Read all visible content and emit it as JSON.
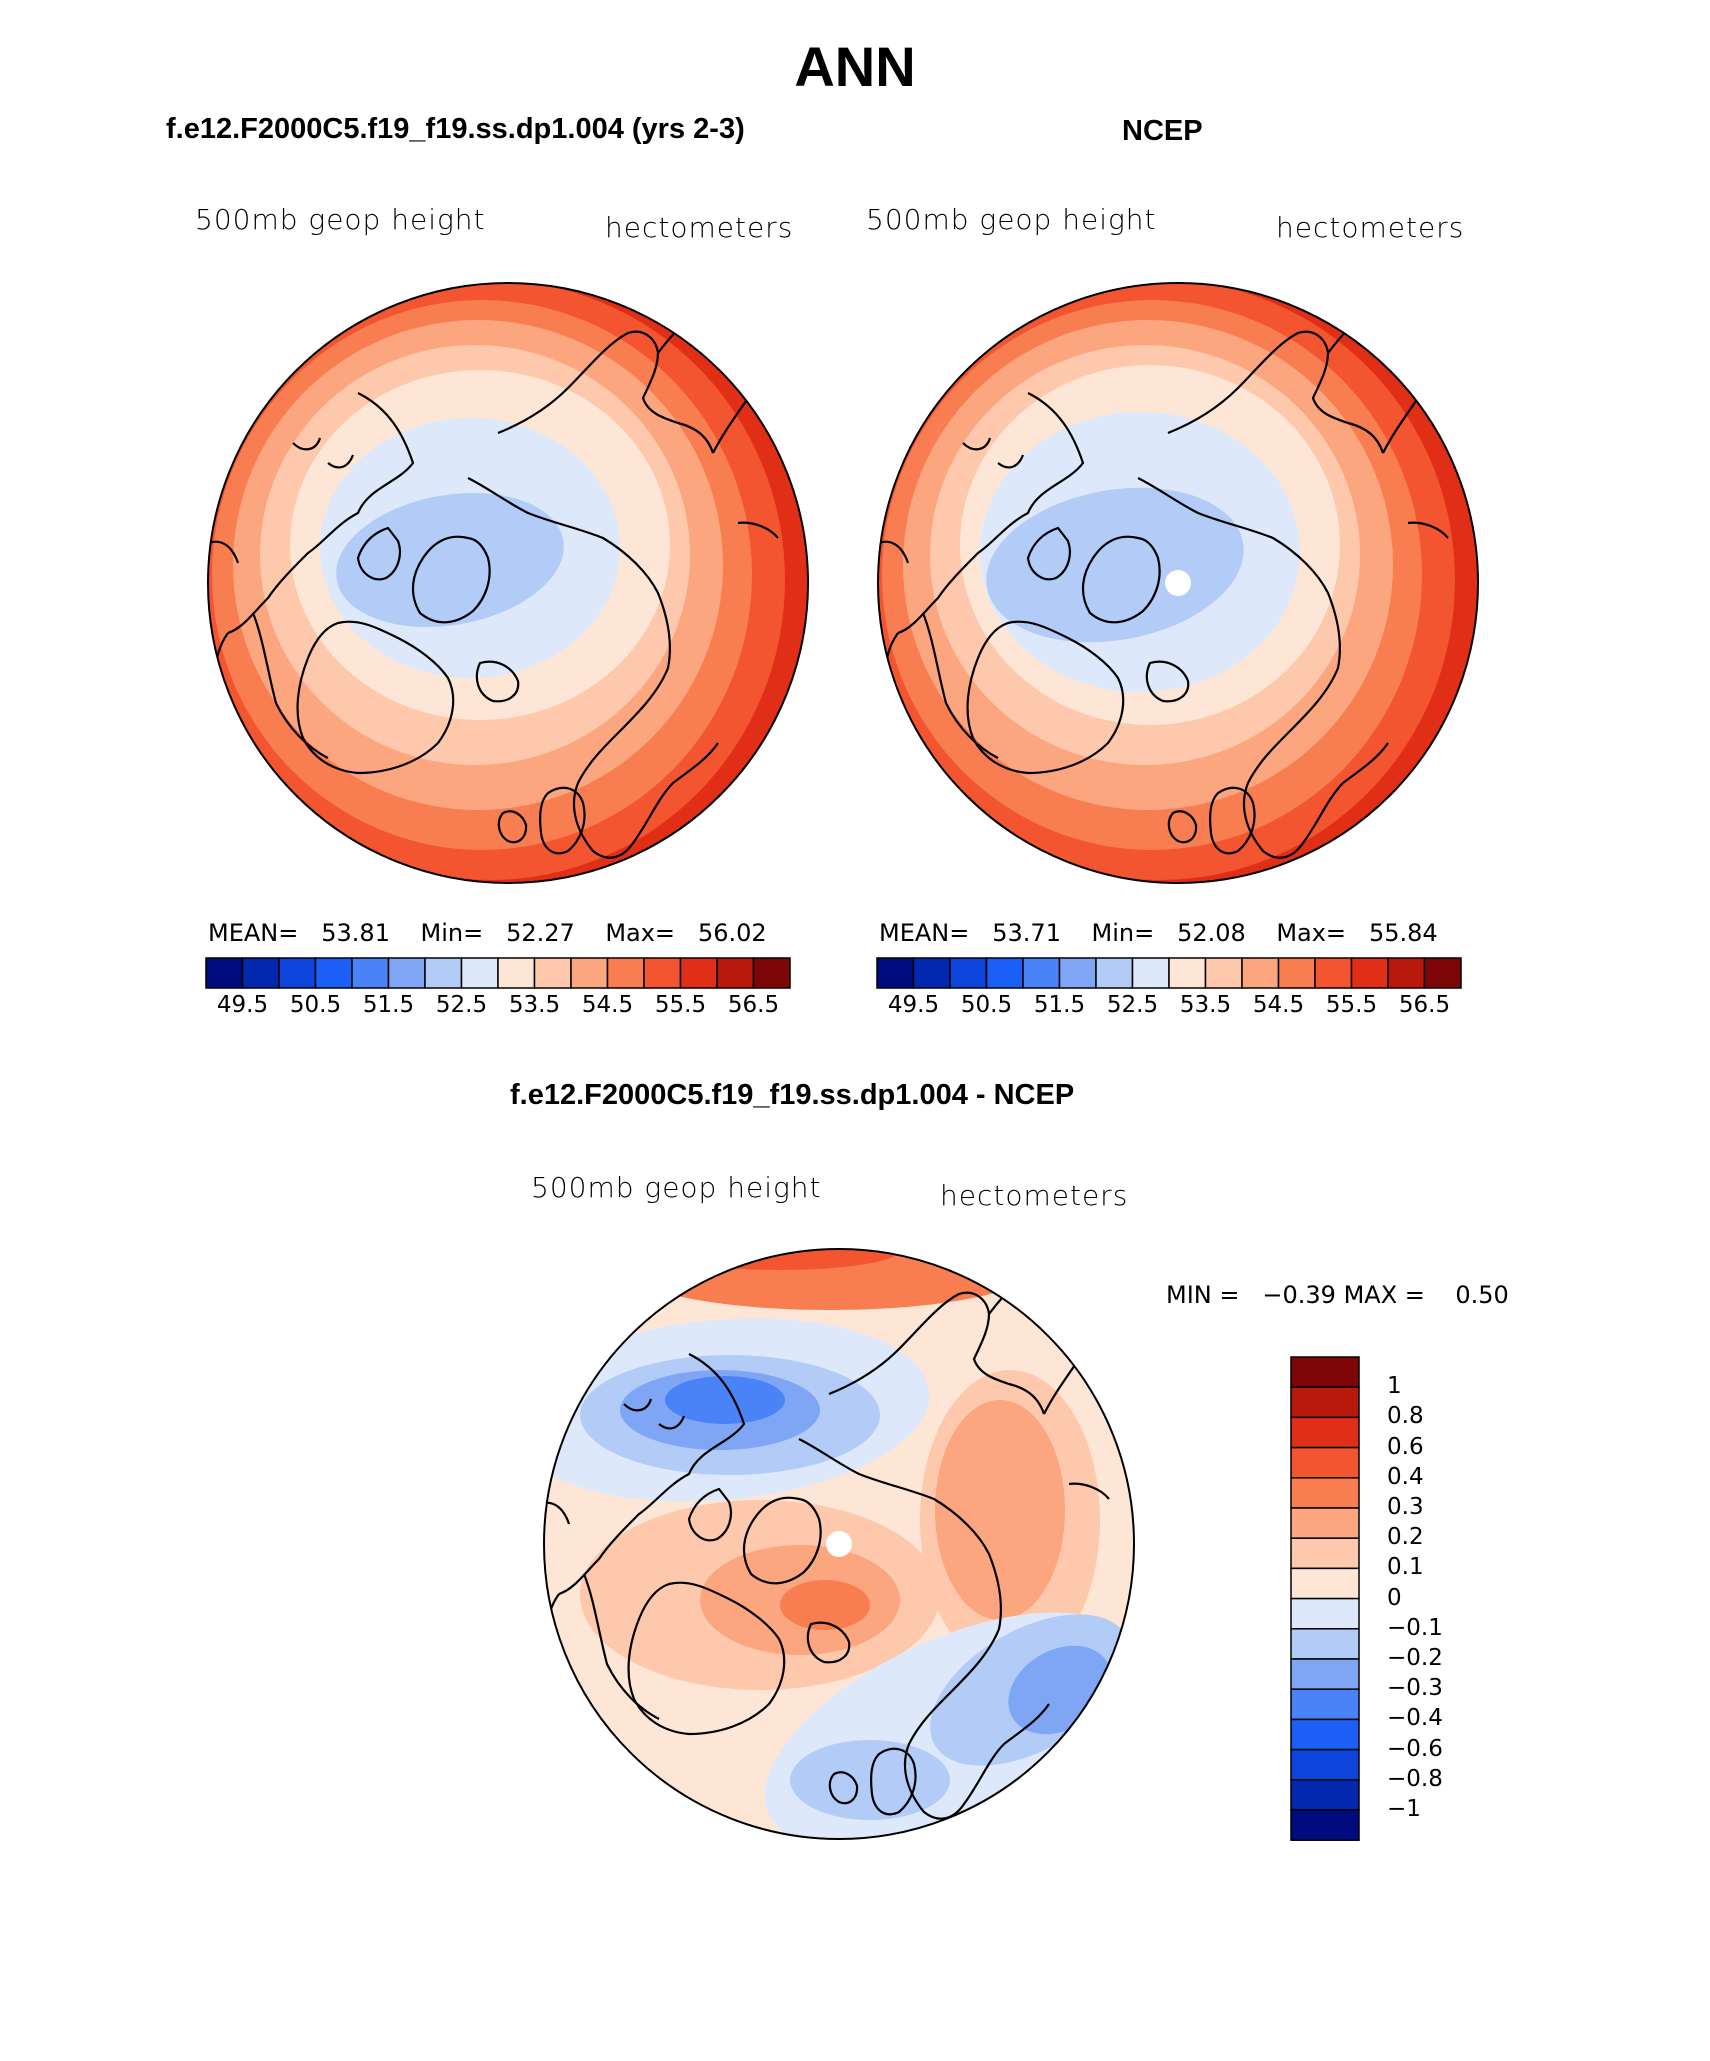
{
  "figure": {
    "season": "ANN",
    "field_label": "500mb geop height",
    "units_label": "hectometers"
  },
  "panels": [
    {
      "id": "model",
      "case_title": "f.e12.F2000C5.f19_f19.ss.dp1.004 (yrs 2-3)",
      "stats": {
        "mean_label": "MEAN=",
        "mean": "53.81",
        "min_label": "Min=",
        "min": "52.27",
        "max_label": "Max=",
        "max": "56.02"
      }
    },
    {
      "id": "obs",
      "case_title": "NCEP",
      "stats": {
        "mean_label": "MEAN=",
        "mean": "53.71",
        "min_label": "Min=",
        "min": "52.08",
        "max_label": "Max=",
        "max": "55.84"
      }
    },
    {
      "id": "diff",
      "case_title": "f.e12.F2000C5.f19_f19.ss.dp1.004 - NCEP",
      "stats": {
        "min_label": "MIN =",
        "min": "−0.39",
        "max_label": "MAX =",
        "max": "0.50"
      }
    }
  ],
  "colorbar_abs": {
    "tick_labels": [
      "49.5",
      "50.5",
      "51.5",
      "52.5",
      "53.5",
      "54.5",
      "55.5",
      "56.5"
    ],
    "colors": [
      "#000c7e",
      "#0328b0",
      "#0d44dc",
      "#1b5ff7",
      "#4a82f7",
      "#7fa6f5",
      "#b3cbf7",
      "#dde9fb",
      "#fde6d5",
      "#fdc8ac",
      "#fba67f",
      "#f87e52",
      "#f25530",
      "#e02f16",
      "#b8190a",
      "#7e0508"
    ]
  },
  "colorbar_diff": {
    "tick_labels": [
      "1",
      "0.8",
      "0.6",
      "0.4",
      "0.3",
      "0.2",
      "0.1",
      "0",
      "−0.1",
      "−0.2",
      "−0.3",
      "−0.4",
      "−0.6",
      "−0.8",
      "−1"
    ],
    "colors": [
      "#7e0508",
      "#b8190a",
      "#e02f16",
      "#f25530",
      "#f87e52",
      "#fba67f",
      "#fdc8ac",
      "#fde6d5",
      "#dde9fb",
      "#b3cbf7",
      "#7fa6f5",
      "#4a82f7",
      "#1b5ff7",
      "#0d44dc",
      "#0328b0",
      "#000c7e"
    ]
  },
  "chart_data": {
    "type": "heatmap",
    "projection": "north polar stereographic",
    "model_levels_hm": [
      [
        52.5,
        53.0
      ],
      [
        53.0,
        53.5
      ],
      [
        53.5,
        54.0
      ],
      [
        54.0,
        54.5
      ],
      [
        54.5,
        55.0
      ],
      [
        55.0,
        55.5
      ],
      [
        55.5,
        56.0
      ]
    ],
    "diff_range": [
      -0.39,
      0.5
    ]
  }
}
